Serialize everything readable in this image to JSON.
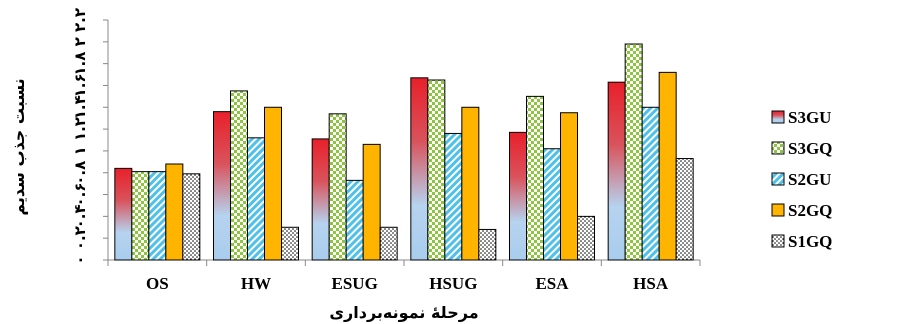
{
  "chart_data": {
    "type": "bar",
    "title": "",
    "ylabel": "نسبت جذب سدیم",
    "xlabel": "مرحلۀ نمونه‌برداری",
    "ylim": [
      0,
      2.2
    ],
    "y_ticks": [
      "۰",
      "۰.۲",
      "۰.۴",
      "۰.۶",
      "۰.۸",
      "۱",
      "۱.۲",
      "۱.۴",
      "۱.۶",
      "۱.۸",
      "۲",
      "۲.۲"
    ],
    "categories": [
      "OS",
      "HW",
      "ESUG",
      "HSUG",
      "ESA",
      "HSA"
    ],
    "legend_position": "right",
    "grid": false,
    "series": [
      {
        "name": "S3GU",
        "pattern": "gradient",
        "colors": [
          "#e8202a",
          "#a9cdee"
        ],
        "values": [
          0.84,
          1.36,
          1.11,
          1.67,
          1.17,
          1.63
        ]
      },
      {
        "name": "S3GQ",
        "pattern": "checker",
        "colors": [
          "#8cc63f",
          "#ffffff"
        ],
        "values": [
          0.81,
          1.55,
          1.34,
          1.65,
          1.5,
          1.98
        ]
      },
      {
        "name": "S2GU",
        "pattern": "diagonal",
        "colors": [
          "#4fc1e9",
          "#ffffff"
        ],
        "values": [
          0.81,
          1.12,
          0.73,
          1.16,
          1.02,
          1.4
        ]
      },
      {
        "name": "S2GQ",
        "pattern": "solid",
        "colors": [
          "#ffb400"
        ],
        "values": [
          0.88,
          1.4,
          1.06,
          1.4,
          1.35,
          1.72
        ]
      },
      {
        "name": "S1GQ",
        "pattern": "dots",
        "colors": [
          "#ffffff",
          "#000000"
        ],
        "values": [
          0.79,
          0.3,
          0.3,
          0.28,
          0.4,
          0.93
        ]
      }
    ]
  }
}
